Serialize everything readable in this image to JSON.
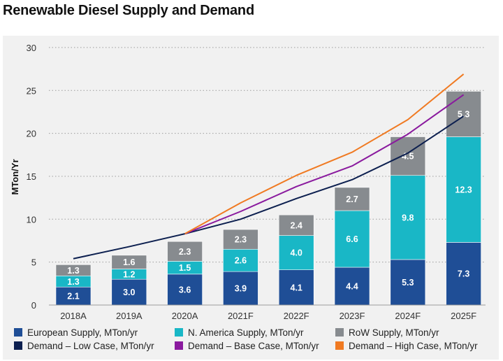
{
  "title": "Renewable Diesel Supply and Demand",
  "chart_data": {
    "type": "bar",
    "stacked": true,
    "title": "Renewable Diesel Supply and Demand",
    "ylabel": "MTon/Yr",
    "xlabel": "",
    "ylim": [
      0,
      30
    ],
    "yticks": [
      0,
      5,
      10,
      15,
      20,
      25,
      30
    ],
    "grid": true,
    "legend_position": "bottom",
    "categories": [
      "2018A",
      "2019A",
      "2020A",
      "2021F",
      "2022F",
      "2023F",
      "2024F",
      "2025F"
    ],
    "series": [
      {
        "name": "European Supply, MTon/yr",
        "kind": "bar",
        "color": "#1f4e96",
        "values": [
          2.1,
          3.0,
          3.6,
          3.9,
          4.1,
          4.4,
          5.3,
          7.3
        ]
      },
      {
        "name": "N. America Supply, MTon/yr",
        "kind": "bar",
        "color": "#19b7c6",
        "values": [
          1.3,
          1.2,
          1.5,
          2.6,
          4.0,
          6.6,
          9.8,
          12.3
        ]
      },
      {
        "name": "RoW Supply, MTon/yr",
        "kind": "bar",
        "color": "#878b8f",
        "values": [
          1.3,
          1.6,
          2.3,
          2.3,
          2.4,
          2.7,
          4.5,
          5.3
        ]
      },
      {
        "name": "Demand – Low Case, MTon/yr",
        "kind": "line",
        "color": "#0c1f4f",
        "values": [
          5.4,
          6.8,
          8.3,
          10.0,
          12.4,
          14.6,
          17.7,
          22.0
        ]
      },
      {
        "name": "Demand – Base Case, MTon/yr",
        "kind": "line",
        "color": "#8a1a9e",
        "values": [
          null,
          null,
          8.3,
          10.9,
          13.8,
          16.2,
          19.9,
          24.5
        ]
      },
      {
        "name": "Demand – High Case, MTon/yr",
        "kind": "line",
        "color": "#f07a22",
        "values": [
          null,
          null,
          8.3,
          11.9,
          15.1,
          17.8,
          21.6,
          26.9
        ]
      }
    ]
  }
}
